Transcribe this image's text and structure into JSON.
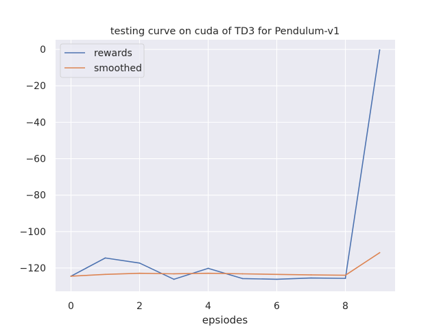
{
  "chart_data": {
    "type": "line",
    "title": "testing curve on cuda of TD3 for Pendulum-v1",
    "xlabel": "epsiodes",
    "ylabel": "",
    "x": [
      0,
      1,
      2,
      3,
      4,
      5,
      6,
      7,
      8,
      9
    ],
    "xlim": [
      -0.45,
      9.45
    ],
    "ylim": [
      -132.8,
      5.3
    ],
    "xticks": [
      0,
      2,
      4,
      6,
      8
    ],
    "yticks": [
      0,
      -20,
      -40,
      -60,
      -80,
      -100,
      -120
    ],
    "ytick_labels": [
      "0",
      "−20",
      "−40",
      "−60",
      "−80",
      "−100",
      "−120"
    ],
    "grid": true,
    "legend_position": "top-left",
    "series": [
      {
        "name": "rewards",
        "color": "#4c72b0",
        "values": [
          -124.5,
          -114.5,
          -117.3,
          -126.2,
          -120.2,
          -125.8,
          -126.2,
          -125.5,
          -125.7,
          -0.3
        ]
      },
      {
        "name": "smoothed",
        "color": "#dd8452",
        "values": [
          -124.5,
          -123.5,
          -122.9,
          -123.2,
          -122.9,
          -123.2,
          -123.5,
          -123.8,
          -124.0,
          -111.6
        ]
      }
    ],
    "plot_background": "#eaeaf2",
    "grid_color": "#ffffff"
  }
}
